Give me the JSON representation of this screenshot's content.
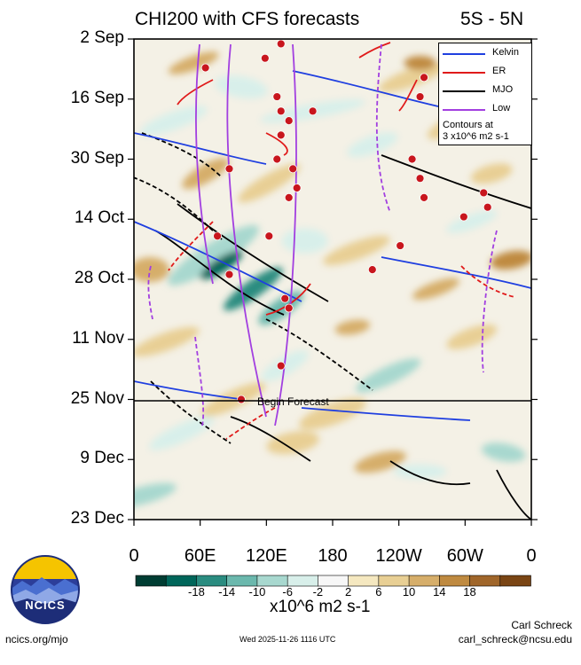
{
  "title_left": "CHI200 with CFS forecasts",
  "title_right": "5S - 5N",
  "y_axis": {
    "labels": [
      "2 Sep",
      "16 Sep",
      "30 Sep",
      "14 Oct",
      "28 Oct",
      "11 Nov",
      "25 Nov",
      "9 Dec",
      "23 Dec"
    ]
  },
  "x_axis": {
    "labels": [
      "0",
      "60E",
      "120E",
      "180",
      "120W",
      "60W",
      "0"
    ]
  },
  "forecast_label": "Begin Forecast",
  "legend": {
    "items": [
      {
        "label": "Kelvin",
        "color": "#1f3fe0"
      },
      {
        "label": "ER",
        "color": "#e01a1a"
      },
      {
        "label": "MJO",
        "color": "#000000"
      },
      {
        "label": "Low",
        "color": "#a23fe0"
      }
    ],
    "note_line1": "Contours at",
    "note_line2": "3 x10^6 m2 s-1"
  },
  "colorbar": {
    "labels": [
      "-18",
      "-14",
      "-10",
      "-6",
      "-2",
      "2",
      "6",
      "10",
      "14",
      "18"
    ],
    "colors": [
      "#003d33",
      "#00665a",
      "#2a8c80",
      "#6bb8ad",
      "#a8d8cf",
      "#d8efea",
      "#f7f7f7",
      "#f5e8c0",
      "#e8cf94",
      "#d6ae6a",
      "#bf8a40",
      "#a0662a",
      "#7a4514"
    ],
    "unit_label": "x10^6 m2 s-1"
  },
  "footer": {
    "url": "ncics.org/mjo",
    "timestamp": "Wed 2025-11-26 1116 UTC",
    "author": "Carl Schreck",
    "email": "carl_schreck@ncsu.edu"
  },
  "logo_text": "NCICS",
  "chart_data": {
    "type": "heatmap",
    "title": "CHI200 with CFS forecasts",
    "subtitle": "5S - 5N",
    "xlabel": "",
    "ylabel": "",
    "x_ticks": [
      "0",
      "60E",
      "120E",
      "180",
      "120W",
      "60W",
      "0"
    ],
    "x_range_deg": [
      0,
      360
    ],
    "y_ticks": [
      "2 Sep",
      "16 Sep",
      "30 Sep",
      "14 Oct",
      "28 Oct",
      "11 Nov",
      "25 Nov",
      "9 Dec",
      "23 Dec"
    ],
    "y_range": [
      "2 Sep",
      "23 Dec"
    ],
    "forecast_start": "25 Nov",
    "color_levels": [
      -18,
      -14,
      -10,
      -6,
      -2,
      2,
      6,
      10,
      14,
      18
    ],
    "unit": "x10^6 m2 s-1",
    "series": [
      {
        "name": "Kelvin",
        "color": "#1f3fe0",
        "description": "eastward-propagating contours"
      },
      {
        "name": "ER",
        "color": "#e01a1a",
        "description": "westward-propagating contours"
      },
      {
        "name": "MJO",
        "color": "#000000",
        "description": "eastward-propagating contours"
      },
      {
        "name": "Low",
        "color": "#a23fe0",
        "description": "low-frequency contours"
      }
    ],
    "anomaly_centers": [
      {
        "lon_deg": 100,
        "date": "22 Oct",
        "value": -18
      },
      {
        "lon_deg": 130,
        "date": "2 Nov",
        "value": -14
      },
      {
        "lon_deg": 320,
        "date": "28 Oct",
        "value": 14
      },
      {
        "lon_deg": 30,
        "date": "28 Oct",
        "value": 10
      },
      {
        "lon_deg": 270,
        "date": "9 Sep",
        "value": 10
      }
    ],
    "grid": false
  }
}
